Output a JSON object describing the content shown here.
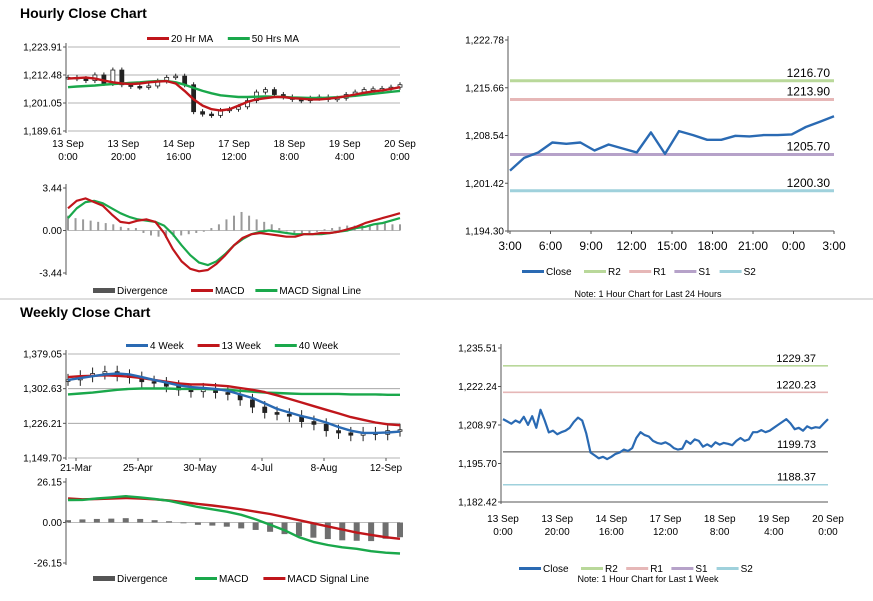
{
  "sections": {
    "hourly_title": "Hourly Close Chart",
    "weekly_title": "Weekly Close Chart"
  },
  "colors": {
    "ma_short": "#c0161b",
    "ma_long": "#1aa84b",
    "close": "#2a6ab3",
    "r2": "#b9d89a",
    "r1": "#e6b7b7",
    "s1": "#b6a2c9",
    "s2": "#9fd1dc",
    "bars": "#9a9a9a",
    "grid": "#9a9a9a"
  },
  "chart_data": [
    {
      "id": "hourly_close",
      "type": "line",
      "title": "Hourly Close Chart",
      "legend": [
        "20 Hr MA",
        "50 Hrs MA"
      ],
      "y_ticks": [
        "1,223.91",
        "1,212.48",
        "1,201.05",
        "1,189.61"
      ],
      "ylim": [
        1189.61,
        1223.91
      ],
      "x_ticks": [
        [
          "13 Sep",
          "0:00"
        ],
        [
          "13 Sep",
          "20:00"
        ],
        [
          "14 Sep",
          "16:00"
        ],
        [
          "17 Sep",
          "12:00"
        ],
        [
          "18 Sep",
          "8:00"
        ],
        [
          "19 Sep",
          "4:00"
        ],
        [
          "20 Sep",
          "0:00"
        ]
      ],
      "close": [
        1211.5,
        1211.0,
        1210.2,
        1212.5,
        1209.0,
        1214.5,
        1208.5,
        1207.8,
        1207.5,
        1208.0,
        1210.0,
        1211.5,
        1212.0,
        1208.5,
        1197.5,
        1196.5,
        1196.0,
        1198.0,
        1198.5,
        1199.5,
        1202.0,
        1205.5,
        1206.5,
        1204.5,
        1203.5,
        1202.5,
        1202.0,
        1203.0,
        1203.5,
        1202.5,
        1203.0,
        1204.5,
        1205.5,
        1206.5,
        1206.8,
        1207.0,
        1207.5,
        1208.5
      ],
      "series": [
        {
          "name": "20 Hr MA",
          "values": [
            1211.0,
            1211.2,
            1211.4,
            1211.0,
            1210.2,
            1209.5,
            1209.0,
            1208.8,
            1209.0,
            1209.5,
            1209.8,
            1210.0,
            1209.0,
            1206.0,
            1202.5,
            1200.0,
            1198.5,
            1198.0,
            1198.5,
            1200.0,
            1201.5,
            1202.5,
            1203.0,
            1203.5,
            1203.5,
            1203.0,
            1202.8,
            1202.5,
            1202.5,
            1202.8,
            1203.2,
            1203.8,
            1204.5,
            1205.2,
            1205.8,
            1206.2,
            1206.8,
            1207.5
          ]
        },
        {
          "name": "50 Hrs MA",
          "values": [
            1207.5,
            1207.8,
            1208.0,
            1208.2,
            1208.5,
            1208.8,
            1209.0,
            1209.3,
            1209.5,
            1209.8,
            1210.0,
            1210.0,
            1209.5,
            1208.5,
            1207.2,
            1206.0,
            1205.0,
            1204.2,
            1203.8,
            1203.5,
            1203.5,
            1203.6,
            1203.7,
            1203.6,
            1203.5,
            1203.3,
            1203.2,
            1203.1,
            1203.1,
            1203.2,
            1203.4,
            1203.7,
            1204.0,
            1204.4,
            1204.8,
            1205.2,
            1205.6,
            1206.0
          ]
        }
      ]
    },
    {
      "id": "hourly_macd",
      "type": "line",
      "legend": [
        "Divergence",
        "MACD",
        "MACD Signal Line"
      ],
      "y_ticks": [
        "3.44",
        "0.00",
        "-3.44"
      ],
      "ylim": [
        -3.44,
        3.44
      ],
      "divergence": [
        1.2,
        1.0,
        0.9,
        0.8,
        0.7,
        0.6,
        0.5,
        0.3,
        0.2,
        0.2,
        -0.2,
        -0.4,
        -0.5,
        -0.6,
        -0.5,
        -0.4,
        -0.3,
        -0.2,
        -0.1,
        0.2,
        0.5,
        0.9,
        1.2,
        1.5,
        1.2,
        0.9,
        0.7,
        0.5,
        0.2,
        0.0,
        -0.2,
        -0.3,
        -0.2,
        -0.1,
        0.1,
        0.2,
        0.3,
        0.4,
        0.4,
        0.5,
        0.5,
        0.6,
        0.6,
        0.5,
        0.5
      ],
      "series": [
        {
          "name": "MACD",
          "values": [
            1.8,
            2.4,
            2.6,
            2.3,
            2.0,
            1.3,
            0.7,
            0.6,
            0.8,
            0.9,
            0.7,
            -0.2,
            -1.5,
            -2.5,
            -3.1,
            -3.3,
            -3.2,
            -2.7,
            -2.0,
            -1.2,
            -0.6,
            -0.3,
            -0.2,
            -0.3,
            -0.4,
            -0.5,
            -0.5,
            -0.3,
            -0.3,
            -0.2,
            -0.2,
            -0.1,
            0.1,
            0.3,
            0.6,
            0.8,
            1.0,
            1.2,
            1.4
          ]
        },
        {
          "name": "MACD Signal Line",
          "values": [
            1.0,
            1.8,
            2.3,
            2.4,
            2.2,
            1.8,
            1.4,
            1.1,
            0.9,
            0.8,
            0.7,
            0.4,
            -0.3,
            -1.2,
            -2.0,
            -2.6,
            -2.8,
            -2.5,
            -1.9,
            -1.2,
            -0.7,
            -0.3,
            -0.1,
            0.0,
            -0.1,
            -0.2,
            -0.3,
            -0.3,
            -0.3,
            -0.3,
            -0.2,
            -0.1,
            0.0,
            0.2,
            0.3,
            0.5,
            0.6,
            0.8,
            1.0
          ]
        }
      ]
    },
    {
      "id": "hourly_pivots",
      "type": "line",
      "y_ticks": [
        "1,222.78",
        "1,215.66",
        "1,208.54",
        "1,201.42",
        "1,194.30"
      ],
      "ylim": [
        1194.3,
        1222.78
      ],
      "x_ticks": [
        "3:00",
        "6:00",
        "9:00",
        "12:00",
        "15:00",
        "18:00",
        "21:00",
        "0:00",
        "3:00"
      ],
      "levels": [
        {
          "name": "R2",
          "value": 1216.7,
          "label": "1216.70"
        },
        {
          "name": "R1",
          "value": 1213.9,
          "label": "1213.90"
        },
        {
          "name": "S1",
          "value": 1205.7,
          "label": "1205.70"
        },
        {
          "name": "S2",
          "value": 1200.3,
          "label": "1200.30"
        }
      ],
      "series": [
        {
          "name": "Close",
          "values": [
            1203.3,
            1205.2,
            1206.0,
            1207.5,
            1207.3,
            1207.5,
            1206.3,
            1207.2,
            1206.6,
            1206.0,
            1209.0,
            1205.8,
            1209.2,
            1208.6,
            1207.9,
            1207.9,
            1208.5,
            1208.4,
            1208.6,
            1208.6,
            1208.7,
            1209.8,
            1210.6,
            1211.4
          ]
        }
      ],
      "legend": [
        "Close",
        "R2",
        "R1",
        "S1",
        "S2"
      ],
      "note": "Note: 1 Hour Chart for Last 24 Hours"
    },
    {
      "id": "weekly_close",
      "type": "line",
      "title": "Weekly Close Chart",
      "legend": [
        "4 Week",
        "13 Week",
        "40 Week"
      ],
      "y_ticks": [
        "1,379.05",
        "1,302.63",
        "1,226.21",
        "1,149.70"
      ],
      "ylim": [
        1149.7,
        1379.05
      ],
      "x_ticks": [
        "21-Mar",
        "25-Apr",
        "30-May",
        "4-Jul",
        "8-Aug",
        "12-Sep"
      ],
      "close": [
        1322,
        1330,
        1336,
        1340,
        1332,
        1327,
        1318,
        1315,
        1308,
        1300,
        1296,
        1302,
        1294,
        1290,
        1278,
        1262,
        1250,
        1246,
        1242,
        1230,
        1224,
        1210,
        1205,
        1200,
        1205,
        1202,
        1210,
        1212
      ],
      "series": [
        {
          "name": "4 Week",
          "values": [
            1322,
            1326,
            1330,
            1334,
            1336,
            1334,
            1328,
            1322,
            1316,
            1310,
            1306,
            1304,
            1302,
            1298,
            1290,
            1282,
            1270,
            1258,
            1250,
            1242,
            1236,
            1228,
            1218,
            1210,
            1205,
            1205,
            1206,
            1208
          ]
        },
        {
          "name": "13 Week",
          "values": [
            1328,
            1330,
            1331,
            1332,
            1331,
            1329,
            1326,
            1322,
            1318,
            1314,
            1312,
            1312,
            1310,
            1308,
            1304,
            1300,
            1295,
            1288,
            1280,
            1272,
            1264,
            1256,
            1248,
            1240,
            1234,
            1228,
            1224,
            1222
          ]
        },
        {
          "name": "40 Week",
          "values": [
            1290,
            1292,
            1294,
            1297,
            1300,
            1302,
            1303,
            1303,
            1303,
            1302,
            1302,
            1302,
            1301,
            1300,
            1298,
            1296,
            1294,
            1293,
            1292,
            1291,
            1291,
            1291,
            1291,
            1290,
            1290,
            1290,
            1289,
            1289
          ]
        }
      ]
    },
    {
      "id": "weekly_macd",
      "type": "line",
      "legend": [
        "Divergence",
        "MACD",
        "MACD Signal Line"
      ],
      "y_ticks": [
        "26.15",
        "0.00",
        "-26.15"
      ],
      "ylim": [
        -26.15,
        26.15
      ],
      "divergence": [
        1.5,
        2.0,
        2.3,
        2.5,
        2.8,
        2.3,
        1.5,
        0.8,
        -0.5,
        -1.5,
        -2.0,
        -2.7,
        -3.8,
        -4.8,
        -6.0,
        -7.5,
        -8.8,
        -9.8,
        -10.7,
        -11.5,
        -11.8,
        -12.0,
        -10.5,
        -9.5
      ],
      "series": [
        {
          "name": "MACD",
          "values": [
            14.5,
            14.6,
            15.5,
            16.2,
            17.0,
            16.2,
            15.2,
            14.0,
            12.0,
            10.0,
            8.5,
            7.0,
            5.0,
            2.0,
            -1.5,
            -5.0,
            -9.5,
            -12.5,
            -14.5,
            -16.0,
            -17.0,
            -18.5,
            -19.5,
            -20.0
          ]
        },
        {
          "name": "MACD Signal Line",
          "values": [
            15.5,
            15.0,
            15.2,
            15.5,
            15.8,
            15.5,
            15.0,
            14.2,
            13.2,
            12.0,
            11.0,
            9.8,
            8.5,
            7.0,
            5.5,
            3.5,
            1.5,
            -0.5,
            -2.5,
            -4.5,
            -6.5,
            -8.0,
            -9.5,
            -10.5
          ]
        }
      ]
    },
    {
      "id": "weekly_pivots",
      "type": "line",
      "y_ticks": [
        "1,235.51",
        "1,222.24",
        "1,208.97",
        "1,195.70",
        "1,182.42"
      ],
      "ylim": [
        1182.42,
        1235.51
      ],
      "x_ticks": [
        [
          "13 Sep",
          "0:00"
        ],
        [
          "13 Sep",
          "20:00"
        ],
        [
          "14 Sep",
          "16:00"
        ],
        [
          "17 Sep",
          "12:00"
        ],
        [
          "18 Sep",
          "8:00"
        ],
        [
          "19 Sep",
          "4:00"
        ],
        [
          "20 Sep",
          "0:00"
        ]
      ],
      "levels": [
        {
          "name": "R2",
          "value": 1229.37,
          "label": "1229.37"
        },
        {
          "name": "R1",
          "value": 1220.23,
          "label": "1220.23"
        },
        {
          "name": "S1",
          "value": 1199.73,
          "label": "1199.73"
        },
        {
          "name": "S2",
          "value": 1188.37,
          "label": "1188.37"
        }
      ],
      "series": [
        {
          "name": "Close",
          "values": [
            1211.0,
            1210.2,
            1209.4,
            1210.5,
            1209.8,
            1211.8,
            1209.0,
            1212.0,
            1208.0,
            1214.2,
            1210.5,
            1206.4,
            1207.0,
            1205.8,
            1206.5,
            1207.0,
            1208.0,
            1210.0,
            1211.5,
            1210.5,
            1206.0,
            1199.5,
            1198.5,
            1197.5,
            1198.0,
            1197.2,
            1198.0,
            1199.0,
            1199.5,
            1200.5,
            1200.0,
            1201.0,
            1204.5,
            1206.5,
            1205.5,
            1205.0,
            1203.5,
            1202.8,
            1202.5,
            1203.0,
            1202.2,
            1201.0,
            1200.5,
            1200.8,
            1203.5,
            1202.5,
            1204.0,
            1203.5,
            1201.5,
            1202.3,
            1201.5,
            1203.0,
            1202.2,
            1202.8,
            1202.5,
            1202.0,
            1203.5,
            1204.5,
            1203.5,
            1204.0,
            1206.5,
            1206.5,
            1207.2,
            1206.5,
            1207.0,
            1208.0,
            1209.0,
            1210.0,
            1211.0,
            1209.5,
            1207.5,
            1208.0,
            1207.0,
            1208.5,
            1207.8,
            1208.2,
            1208.0,
            1209.5,
            1211.0
          ]
        }
      ],
      "legend": [
        "Close",
        "R2",
        "R1",
        "S1",
        "S2"
      ],
      "note": "Note: 1 Hour Chart for Last 1 Week"
    }
  ]
}
